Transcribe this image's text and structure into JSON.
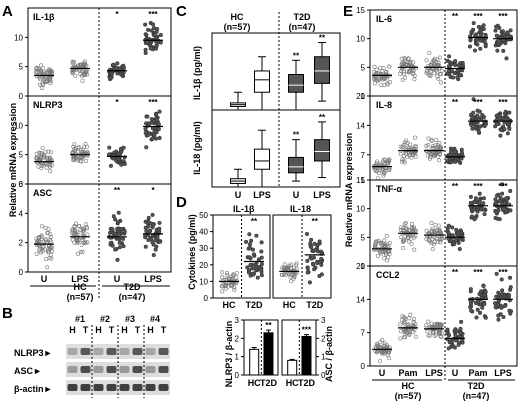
{
  "panel_letters": [
    "A",
    "B",
    "C",
    "D",
    "E"
  ],
  "chart_data": [
    {
      "panel": "A",
      "type": "scatter",
      "ylabel": "Relative mRNA expression",
      "categories": [
        "U",
        "LPS",
        "U",
        "LPS"
      ],
      "group_labels": [
        {
          "name": "HC",
          "n": "(n=57)"
        },
        {
          "name": "T2D",
          "n": "(n=47)"
        }
      ],
      "subplots": [
        {
          "label": "IL-1β",
          "ylim": [
            0,
            15
          ],
          "ticks": [
            0,
            5,
            10
          ],
          "series": [
            {
              "center": 3.5,
              "spread": 1.1,
              "n": 55,
              "marker": "open",
              "sig": ""
            },
            {
              "center": 4.7,
              "spread": 1.1,
              "n": 55,
              "marker": "open",
              "sig": ""
            },
            {
              "center": 4.3,
              "spread": 0.9,
              "n": 45,
              "marker": "filled",
              "sig": "*"
            },
            {
              "center": 9.5,
              "spread": 1.8,
              "n": 45,
              "marker": "filled",
              "sig": "***"
            }
          ]
        },
        {
          "label": "NLRP3",
          "ylim": [
            0,
            15
          ],
          "ticks": [
            0,
            5,
            10
          ],
          "series": [
            {
              "center": 3.8,
              "spread": 1.1,
              "n": 55,
              "marker": "open",
              "sig": ""
            },
            {
              "center": 5.0,
              "spread": 1.0,
              "n": 55,
              "marker": "open",
              "sig": ""
            },
            {
              "center": 4.7,
              "spread": 1.0,
              "n": 45,
              "marker": "filled",
              "sig": "*"
            },
            {
              "center": 9.8,
              "spread": 1.8,
              "n": 45,
              "marker": "filled",
              "sig": "***"
            }
          ]
        },
        {
          "label": "ASC",
          "ylim": [
            0,
            6
          ],
          "ticks": [
            0,
            2,
            4,
            6
          ],
          "series": [
            {
              "center": 1.9,
              "spread": 0.7,
              "n": 55,
              "marker": "open",
              "sig": ""
            },
            {
              "center": 2.4,
              "spread": 0.7,
              "n": 55,
              "marker": "open",
              "sig": ""
            },
            {
              "center": 2.4,
              "spread": 0.8,
              "n": 45,
              "marker": "filled",
              "sig": "**"
            },
            {
              "center": 2.6,
              "spread": 0.8,
              "n": 45,
              "marker": "filled",
              "sig": "*"
            }
          ]
        }
      ]
    },
    {
      "panel": "B",
      "type": "table",
      "samples": [
        "#1",
        "#2",
        "#3",
        "#4"
      ],
      "lanes": [
        "H",
        "T",
        "H",
        "T",
        "H",
        "T",
        "H",
        "T"
      ],
      "rows": [
        "NLRP3►",
        "ASC►",
        "β-actin►"
      ]
    },
    {
      "panel": "C",
      "type": "box",
      "group_labels": [
        {
          "name": "HC",
          "n": "(n=57)"
        },
        {
          "name": "T2D",
          "n": "(n=47)"
        }
      ],
      "categories": [
        "U",
        "LPS",
        "U",
        "LPS"
      ],
      "subplots": [
        {
          "ylabel": "IL-1β (pg/ml)",
          "ylim": [
            0,
            40
          ],
          "boxes": [
            {
              "min": 0,
              "q1": 2,
              "med": 3,
              "q3": 4,
              "max": 10,
              "fill": "white",
              "sig": ""
            },
            {
              "min": 0,
              "q1": 10,
              "med": 17,
              "q3": 22,
              "max": 30,
              "fill": "white",
              "sig": ""
            },
            {
              "min": 0,
              "q1": 10,
              "med": 14,
              "q3": 20,
              "max": 28,
              "fill": "gray",
              "sig": "**"
            },
            {
              "min": 5,
              "q1": 15,
              "med": 22,
              "q3": 30,
              "max": 38,
              "fill": "gray",
              "sig": "**"
            }
          ]
        },
        {
          "ylabel": "IL-18 (pg/ml)",
          "ylim": [
            0,
            60
          ],
          "boxes": [
            {
              "min": 0,
              "q1": 3,
              "med": 5,
              "q3": 7,
              "max": 15,
              "fill": "white",
              "sig": ""
            },
            {
              "min": 0,
              "q1": 15,
              "med": 22,
              "q3": 32,
              "max": 48,
              "fill": "white",
              "sig": ""
            },
            {
              "min": 5,
              "q1": 12,
              "med": 17,
              "q3": 25,
              "max": 40,
              "fill": "gray",
              "sig": "**"
            },
            {
              "min": 8,
              "q1": 22,
              "med": 30,
              "q3": 40,
              "max": 55,
              "fill": "gray",
              "sig": "**"
            }
          ]
        }
      ]
    },
    {
      "panel": "D",
      "type": "scatter",
      "ylabel": "Cytokines (pg/ml)",
      "subplots": [
        {
          "label": "IL-1β",
          "ylim": [
            0,
            50
          ],
          "ticks": [
            0,
            10,
            20,
            30,
            40,
            50
          ],
          "categories": [
            "HC",
            "T2D"
          ],
          "series": [
            {
              "center": 10,
              "spread": 4,
              "n": 45,
              "marker": "open",
              "sig": ""
            },
            {
              "center": 22,
              "spread": 9,
              "n": 40,
              "marker": "filled",
              "sig": "**"
            }
          ]
        },
        {
          "label": "IL-18",
          "ylim": [
            0,
            50
          ],
          "ticks": [],
          "categories": [
            "HC",
            "T2D"
          ],
          "series": [
            {
              "center": 16,
              "spread": 3,
              "n": 45,
              "marker": "open",
              "sig": ""
            },
            {
              "center": 26,
              "spread": 8,
              "n": 40,
              "marker": "filled",
              "sig": "**"
            }
          ]
        }
      ]
    },
    {
      "panel": "D",
      "type": "bar",
      "subplots": [
        {
          "ylabel": "NLRP3 / β-actin",
          "ylim": [
            0,
            3
          ],
          "ticks": [
            0,
            1,
            2,
            3
          ],
          "categories": [
            "HC",
            "T2D"
          ],
          "values": [
            1.4,
            2.3
          ],
          "errors": [
            0.1,
            0.15
          ],
          "fills": [
            "white",
            "black"
          ],
          "sigs": [
            "",
            "**"
          ]
        },
        {
          "ylabel": "ASC / β-actin",
          "ylim": [
            0,
            3
          ],
          "ticks": [
            0,
            1,
            2,
            3
          ],
          "categories": [
            "HC",
            "T2D"
          ],
          "values": [
            0.8,
            2.1
          ],
          "errors": [
            0.05,
            0.1
          ],
          "fills": [
            "white",
            "black"
          ],
          "sigs": [
            "",
            "***"
          ]
        }
      ]
    },
    {
      "panel": "E",
      "type": "scatter",
      "ylabel": "Relative mRNA expression",
      "categories": [
        "U",
        "Pam",
        "LPS",
        "U",
        "Pam",
        "LPS"
      ],
      "group_labels": [
        {
          "name": "HC",
          "n": "(n=57)"
        },
        {
          "name": "T2D",
          "n": "(n=47)"
        }
      ],
      "subplots": [
        {
          "label": "IL-6",
          "ylim": [
            0,
            15
          ],
          "ticks": [
            0,
            5,
            10,
            15
          ],
          "series": [
            {
              "center": 3.6,
              "spread": 1.0,
              "n": 50,
              "marker": "open",
              "sig": ""
            },
            {
              "center": 5.0,
              "spread": 1.3,
              "n": 50,
              "marker": "open",
              "sig": ""
            },
            {
              "center": 5.0,
              "spread": 1.3,
              "n": 50,
              "marker": "open",
              "sig": ""
            },
            {
              "center": 4.8,
              "spread": 1.3,
              "n": 42,
              "marker": "filled",
              "sig": "**"
            },
            {
              "center": 10.2,
              "spread": 1.8,
              "n": 42,
              "marker": "filled",
              "sig": "***"
            },
            {
              "center": 10.0,
              "spread": 1.8,
              "n": 42,
              "marker": "filled",
              "sig": "***"
            }
          ]
        },
        {
          "label": "IL-8",
          "ylim": [
            1,
            21
          ],
          "ticks": [
            1,
            7,
            14,
            21
          ],
          "series": [
            {
              "center": 4.2,
              "spread": 1.3,
              "n": 50,
              "marker": "open",
              "sig": ""
            },
            {
              "center": 8.0,
              "spread": 1.6,
              "n": 50,
              "marker": "open",
              "sig": ""
            },
            {
              "center": 8.0,
              "spread": 1.5,
              "n": 50,
              "marker": "open",
              "sig": ""
            },
            {
              "center": 6.5,
              "spread": 1.5,
              "n": 42,
              "marker": "filled",
              "sig": "**"
            },
            {
              "center": 15.0,
              "spread": 2.3,
              "n": 42,
              "marker": "filled",
              "sig": "***"
            },
            {
              "center": 15.0,
              "spread": 2.3,
              "n": 42,
              "marker": "filled",
              "sig": "***"
            }
          ]
        },
        {
          "label": "TNF-α",
          "ylim": [
            0,
            15
          ],
          "ticks": [
            0,
            5,
            10,
            15
          ],
          "series": [
            {
              "center": 3.0,
              "spread": 1.0,
              "n": 50,
              "marker": "open",
              "sig": ""
            },
            {
              "center": 5.7,
              "spread": 1.2,
              "n": 50,
              "marker": "open",
              "sig": ""
            },
            {
              "center": 5.4,
              "spread": 1.1,
              "n": 50,
              "marker": "open",
              "sig": ""
            },
            {
              "center": 5.0,
              "spread": 1.1,
              "n": 42,
              "marker": "filled",
              "sig": "**"
            },
            {
              "center": 10.5,
              "spread": 1.7,
              "n": 42,
              "marker": "filled",
              "sig": "***"
            },
            {
              "center": 10.5,
              "spread": 1.7,
              "n": 42,
              "marker": "filled",
              "sig": "***"
            }
          ]
        },
        {
          "label": "CCL2",
          "ylim": [
            0,
            21
          ],
          "ticks": [
            0,
            7,
            14,
            21
          ],
          "series": [
            {
              "center": 3.5,
              "spread": 1.2,
              "n": 50,
              "marker": "open",
              "sig": ""
            },
            {
              "center": 8.0,
              "spread": 1.4,
              "n": 50,
              "marker": "open",
              "sig": ""
            },
            {
              "center": 7.8,
              "spread": 1.3,
              "n": 50,
              "marker": "open",
              "sig": ""
            },
            {
              "center": 5.8,
              "spread": 1.5,
              "n": 42,
              "marker": "filled",
              "sig": "**"
            },
            {
              "center": 14.0,
              "spread": 2.5,
              "n": 42,
              "marker": "filled",
              "sig": "***"
            },
            {
              "center": 14.0,
              "spread": 2.5,
              "n": 42,
              "marker": "filled",
              "sig": "***"
            }
          ]
        }
      ]
    }
  ]
}
